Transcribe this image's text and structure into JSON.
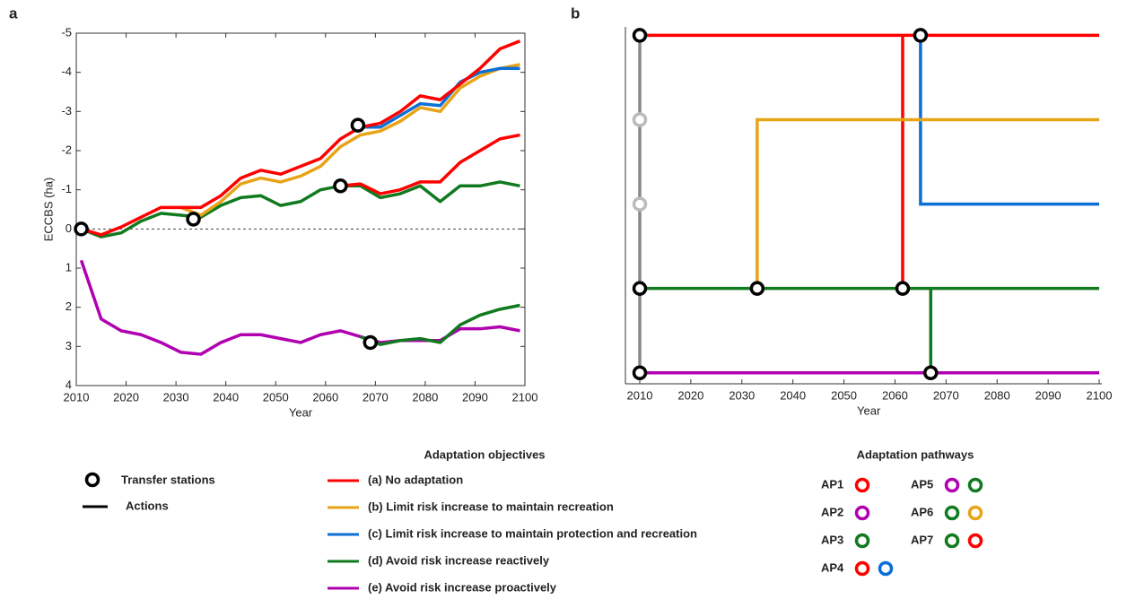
{
  "panels": [
    "a",
    "b"
  ],
  "chart_data": [
    {
      "type": "line",
      "x_label": "Year",
      "y_label": "ECCBS (ha)",
      "x": [
        2011,
        2015,
        2019,
        2023,
        2027,
        2031,
        2035,
        2039,
        2043,
        2047,
        2051,
        2055,
        2059,
        2063,
        2067,
        2071,
        2075,
        2079,
        2083,
        2087,
        2091,
        2095,
        2099
      ],
      "xlim": [
        2010,
        2100
      ],
      "xticks": [
        2010,
        2020,
        2030,
        2040,
        2050,
        2060,
        2070,
        2080,
        2090,
        2100
      ],
      "ylim": [
        -5,
        4
      ],
      "yticks": [
        -5,
        -4,
        -3,
        -2,
        -1,
        0,
        1,
        2,
        3,
        4
      ],
      "invert_y": true,
      "zero_line": true,
      "series": [
        {
          "color": "#b000b0",
          "values": [
            0.8,
            2.3,
            2.6,
            2.7,
            2.9,
            3.15,
            3.2,
            2.9,
            2.7,
            2.7,
            2.8,
            2.9,
            2.7,
            2.6,
            2.75,
            2.9,
            2.85,
            2.85,
            2.85,
            2.55,
            2.55,
            2.5,
            2.6
          ]
        },
        {
          "color": "#117a1f",
          "values": [
            0,
            0.2,
            0.1,
            -0.2,
            -0.4,
            -0.35,
            -0.3,
            -0.6,
            -0.8,
            -0.85,
            -0.6,
            -0.7,
            -1.0,
            -1.1,
            -1.1,
            -0.8,
            -0.9,
            -1.1,
            -0.7,
            -1.1,
            -1.1,
            -1.2,
            -1.1
          ]
        },
        {
          "color": "#117a1f",
          "values": [
            null,
            null,
            null,
            null,
            null,
            null,
            null,
            null,
            null,
            null,
            null,
            null,
            null,
            null,
            2.75,
            2.95,
            2.85,
            2.8,
            2.9,
            2.45,
            2.2,
            2.05,
            1.95
          ]
        },
        {
          "color": "#ff0000",
          "values": [
            null,
            null,
            null,
            null,
            null,
            null,
            null,
            null,
            null,
            null,
            null,
            null,
            null,
            -1.1,
            -1.15,
            -0.9,
            -1.0,
            -1.2,
            -1.2,
            -1.7,
            -2.0,
            -2.3,
            -2.4
          ]
        },
        {
          "color": "#e8a317",
          "values": [
            null,
            null,
            null,
            null,
            null,
            -0.55,
            -0.35,
            -0.7,
            -1.15,
            -1.3,
            -1.2,
            -1.35,
            -1.6,
            -2.1,
            -2.4,
            -2.5,
            -2.75,
            -3.1,
            -3.0,
            -3.6,
            -3.9,
            -4.1,
            -4.2
          ]
        },
        {
          "color": "#0b6fd6",
          "values": [
            null,
            null,
            null,
            null,
            null,
            null,
            null,
            null,
            null,
            null,
            null,
            null,
            null,
            null,
            -2.6,
            -2.6,
            -2.9,
            -3.2,
            -3.15,
            -3.75,
            -4.0,
            -4.1,
            -4.1
          ]
        },
        {
          "color": "#ff0000",
          "values": [
            0,
            0.15,
            -0.05,
            -0.3,
            -0.55,
            -0.55,
            -0.55,
            -0.85,
            -1.3,
            -1.5,
            -1.4,
            -1.6,
            -1.8,
            -2.3,
            -2.6,
            -2.7,
            -3.0,
            -3.4,
            -3.3,
            -3.7,
            -4.1,
            -4.6,
            -4.8
          ]
        }
      ],
      "stations": {
        "x": [
          2011,
          2033.5,
          2063,
          2066.5,
          2069
        ],
        "y": [
          0,
          -0.25,
          -1.1,
          -2.65,
          2.9
        ]
      }
    },
    {
      "type": "pathway",
      "x_label": "Year",
      "xlim": [
        2010,
        2100
      ],
      "xticks": [
        2010,
        2020,
        2030,
        2040,
        2050,
        2060,
        2070,
        2080,
        2090,
        2100
      ],
      "ylim": [
        0.87,
        5.1
      ],
      "paths": [
        {
          "color": "#888888",
          "x": [
            2010,
            2010
          ],
          "y": [
            1,
            5
          ]
        },
        {
          "color": "#ff0000",
          "x": [
            2010,
            2100
          ],
          "y": [
            5,
            5
          ]
        },
        {
          "color": "#ff0000",
          "x": [
            2061.5,
            2061.5
          ],
          "y": [
            2,
            5
          ]
        },
        {
          "color": "#0b6fd6",
          "x": [
            2065,
            2065,
            2100
          ],
          "y": [
            5,
            3,
            3
          ]
        },
        {
          "color": "#e8a317",
          "x": [
            2033,
            2033,
            2100
          ],
          "y": [
            2,
            4,
            4
          ]
        },
        {
          "color": "#117a1f",
          "x": [
            2010,
            2100
          ],
          "y": [
            2,
            2
          ]
        },
        {
          "color": "#117a1f",
          "x": [
            2067,
            2067
          ],
          "y": [
            1,
            2
          ]
        },
        {
          "color": "#b000b0",
          "x": [
            2010,
            2100
          ],
          "y": [
            1,
            1
          ]
        }
      ],
      "stations": {
        "x": [
          2010,
          2010,
          2010,
          2010,
          2010,
          2065,
          2033,
          2061.5,
          2067
        ],
        "y": [
          5,
          4,
          3,
          2,
          1,
          5,
          2,
          2,
          1
        ],
        "colors": [
          "#000000",
          "#bbbbbb",
          "#bbbbbb",
          "#000000",
          "#000000",
          "#000000",
          "#000000",
          "#000000",
          "#000000"
        ]
      }
    }
  ],
  "legend": {
    "stations_label": "Transfer stations",
    "actions_label": "Actions",
    "objectives_title": "Adaptation objectives",
    "objectives": [
      {
        "label": "(a) No adaptation",
        "color": "#ff0000"
      },
      {
        "label": "(b) Limit risk increase to maintain recreation",
        "color": "#e8a317"
      },
      {
        "label": "(c) Limit risk increase to maintain protection and recreation",
        "color": "#0b6fd6"
      },
      {
        "label": "(d) Avoid risk increase reactively",
        "color": "#117a1f"
      },
      {
        "label": "(e) Avoid risk increase proactively",
        "color": "#b000b0"
      }
    ],
    "pathways_title": "Adaptation pathways",
    "pathways": [
      {
        "label": "AP1",
        "colors": [
          "#ff0000"
        ]
      },
      {
        "label": "AP2",
        "colors": [
          "#b000b0"
        ]
      },
      {
        "label": "AP3",
        "colors": [
          "#117a1f"
        ]
      },
      {
        "label": "AP4",
        "colors": [
          "#ff0000",
          "#0b6fd6"
        ]
      },
      {
        "label": "AP5",
        "colors": [
          "#b000b0",
          "#117a1f"
        ]
      },
      {
        "label": "AP6",
        "colors": [
          "#117a1f",
          "#e8a317"
        ]
      },
      {
        "label": "AP7",
        "colors": [
          "#117a1f",
          "#ff0000"
        ]
      }
    ]
  }
}
